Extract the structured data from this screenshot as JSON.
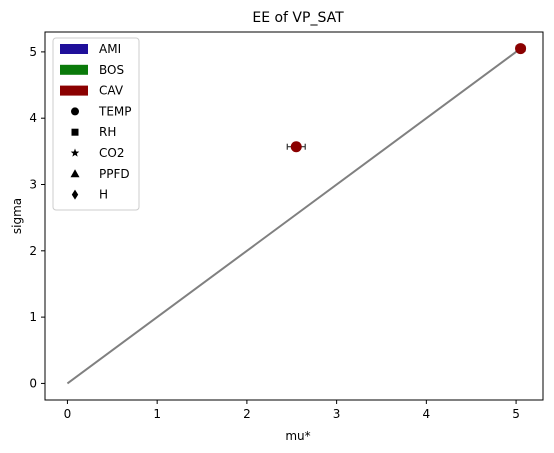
{
  "chart_data": {
    "type": "scatter",
    "title": "EE of VP_SAT",
    "xlabel": "mu*",
    "ylabel": "sigma",
    "xlim": [
      -0.25,
      5.3
    ],
    "ylim": [
      -0.25,
      5.3
    ],
    "xticks": [
      0,
      1,
      2,
      3,
      4,
      5
    ],
    "yticks": [
      0,
      1,
      2,
      3,
      4,
      5
    ],
    "grid": false,
    "legend_position": "upper-left",
    "legend": {
      "colors": [
        {
          "name": "AMI",
          "color": "#1f0f9a"
        },
        {
          "name": "BOS",
          "color": "#0a7a0a"
        },
        {
          "name": "CAV",
          "color": "#8b0000"
        }
      ],
      "markers": [
        {
          "name": "TEMP",
          "shape": "circle"
        },
        {
          "name": "RH",
          "shape": "square"
        },
        {
          "name": "CO2",
          "shape": "star"
        },
        {
          "name": "PPFD",
          "shape": "triangle"
        },
        {
          "name": "H",
          "shape": "diamond"
        }
      ]
    },
    "reference_line": {
      "x": [
        0,
        5.05
      ],
      "y": [
        0,
        5.05
      ],
      "color": "#808080"
    },
    "points": [
      {
        "x": 5.05,
        "y": 5.05,
        "xerr": 0.05,
        "color": "#8b0000",
        "shape": "circle"
      },
      {
        "x": 2.55,
        "y": 3.57,
        "xerr": 0.1,
        "color": "#8b0000",
        "shape": "circle"
      }
    ]
  }
}
